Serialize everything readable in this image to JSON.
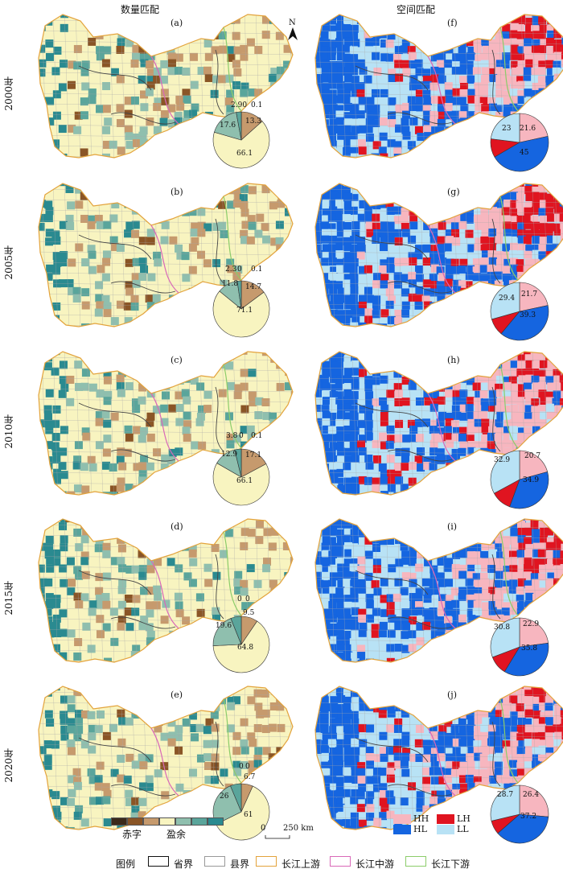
{
  "headers": {
    "left": "数量匹配",
    "right": "空间匹配"
  },
  "north": "N",
  "years": [
    "2000年",
    "2005年",
    "2010年",
    "2015年",
    "2020年"
  ],
  "colors": {
    "deficit": [
      "#3b2a1a",
      "#8a5526",
      "#c69a6d"
    ],
    "balance": "#f8f4c0",
    "surplus": [
      "#8fbfae",
      "#5aa59b",
      "#2a8a90"
    ],
    "HH": "#f7b6bf",
    "HL": "#1565e0",
    "LH": "#e01420",
    "LL": "#b8e2f5",
    "upper": "#e3a33c",
    "middle": "#d968b8",
    "lower": "#8ccc6a"
  },
  "quantity_panels": [
    {
      "label": "(a)",
      "values": {
        "d1": 0.1,
        "d2": 13.3,
        "b": 66.1,
        "s1": 17.6,
        "s2": 2.9,
        "s3": 0
      },
      "label_texts": [
        "2.90",
        "0.1",
        "13.3",
        "17.6",
        "66.1"
      ]
    },
    {
      "label": "(b)",
      "values": {
        "d1": 0.1,
        "d2": 14.7,
        "b": 71.1,
        "s1": 11.8,
        "s2": 2.3,
        "s3": 0
      },
      "label_texts": [
        "2.3",
        "0",
        "0.1",
        "11.8",
        "14.7",
        "71.1"
      ]
    },
    {
      "label": "(c)",
      "values": {
        "d1": 0.1,
        "d2": 17.1,
        "b": 66.1,
        "s1": 12.9,
        "s2": 3.8,
        "s3": 0
      },
      "label_texts": [
        "3.8",
        "0",
        "0.1",
        "12.9",
        "17.1",
        "66.1"
      ]
    },
    {
      "label": "(d)",
      "values": {
        "d1": 0,
        "d2": 9.5,
        "b": 64.8,
        "s1": 19.6,
        "s2": 6.1,
        "s3": 0
      },
      "label_texts": [
        "0",
        "0",
        "19.6",
        "9.5",
        "64.8"
      ]
    },
    {
      "label": "(e)",
      "values": {
        "d1": 0,
        "d2": 6.7,
        "b": 61,
        "s1": 26,
        "s2": 6.3,
        "s3": 0
      },
      "label_texts": [
        "0",
        "0",
        "6.7",
        "26",
        "61"
      ]
    }
  ],
  "spatial_panels": [
    {
      "label": "(f)",
      "values": {
        "HH": 21.6,
        "HL": 45,
        "LH": 10.4,
        "LL": 23
      },
      "label_texts": [
        "23",
        "21.6",
        "45"
      ]
    },
    {
      "label": "(g)",
      "values": {
        "HH": 21.7,
        "HL": 39.3,
        "LH": 9.6,
        "LL": 29.4
      },
      "label_texts": [
        "21.7",
        "29.4",
        "39.3"
      ]
    },
    {
      "label": "(h)",
      "values": {
        "HH": 20.7,
        "HL": 34.9,
        "LH": 11.5,
        "LL": 32.9
      },
      "label_texts": [
        "32.9",
        "20.7",
        "34.9"
      ]
    },
    {
      "label": "(i)",
      "values": {
        "HH": 22.9,
        "HL": 35.8,
        "LH": 10.5,
        "LL": 30.8
      },
      "label_texts": [
        "30.8",
        "22.9",
        "35.8"
      ]
    },
    {
      "label": "(j)",
      "values": {
        "HH": 26.4,
        "HL": 37.2,
        "LH": 7.7,
        "LL": 28.7
      },
      "label_texts": [
        "28.7",
        "26.4",
        "37.2"
      ]
    }
  ],
  "legend": {
    "deficit": "赤字",
    "surplus": "盈余",
    "spatial": [
      "HH",
      "LH",
      "HL",
      "LL"
    ],
    "scale": [
      "0",
      "250 km"
    ],
    "title": "图例",
    "items": [
      "省界",
      "县界",
      "长江上游",
      "长江中游",
      "长江下游"
    ]
  }
}
